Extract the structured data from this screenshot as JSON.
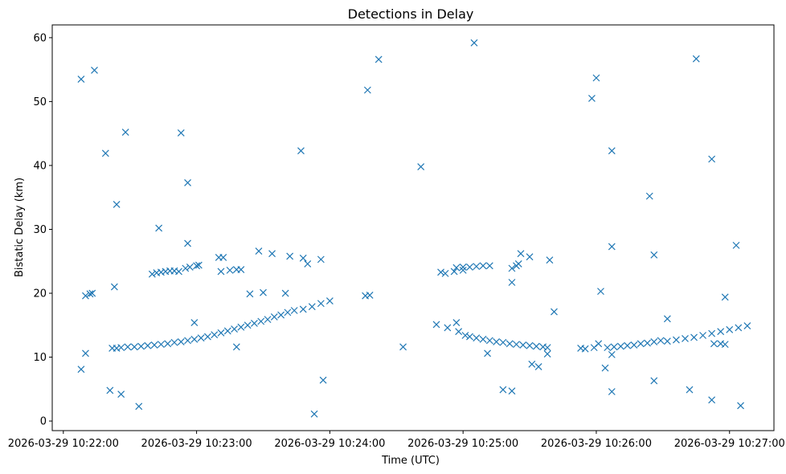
{
  "chart_data": {
    "type": "scatter",
    "title": "Detections in Delay",
    "xlabel": "Time (UTC)",
    "ylabel": "Bistatic Delay (km)",
    "marker": "x",
    "color": "#1f77b4",
    "grid": false,
    "xlim": [
      "2026-03-29 10:21:55",
      "2026-03-29 10:27:20"
    ],
    "ylim": [
      -1.5,
      62
    ],
    "x_ticks": [
      "2026-03-29 10:22:00",
      "2026-03-29 10:23:00",
      "2026-03-29 10:24:00",
      "2026-03-29 10:25:00",
      "2026-03-29 10:26:00",
      "2026-03-29 10:27:00"
    ],
    "y_ticks": [
      0,
      10,
      20,
      30,
      40,
      50,
      60
    ],
    "x_tick_labels": [
      "2026-03-29 10:22:00",
      "2026-03-29 10:23:00",
      "2026-03-29 10:24:00",
      "2026-03-29 10:25:00",
      "2026-03-29 10:26:00",
      "2026-03-29 10:27:00"
    ],
    "y_tick_labels": [
      "0",
      "10",
      "20",
      "30",
      "40",
      "50",
      "60"
    ],
    "points": [
      [
        "2026-03-29 10:22:08",
        53.5
      ],
      [
        "2026-03-29 10:22:08",
        8.1
      ],
      [
        "2026-03-29 10:22:10",
        10.6
      ],
      [
        "2026-03-29 10:22:10",
        19.6
      ],
      [
        "2026-03-29 10:22:12",
        19.9
      ],
      [
        "2026-03-29 10:22:13",
        20.0
      ],
      [
        "2026-03-29 10:22:14",
        54.9
      ],
      [
        "2026-03-29 10:22:19",
        41.9
      ],
      [
        "2026-03-29 10:22:21",
        4.8
      ],
      [
        "2026-03-29 10:22:23",
        21.0
      ],
      [
        "2026-03-29 10:22:24",
        33.9
      ],
      [
        "2026-03-29 10:22:26",
        4.2
      ],
      [
        "2026-03-29 10:22:28",
        45.2
      ],
      [
        "2026-03-29 10:22:34",
        2.3
      ],
      [
        "2026-03-29 10:22:43",
        30.2
      ],
      [
        "2026-03-29 10:22:53",
        45.1
      ],
      [
        "2026-03-29 10:22:56",
        37.3
      ],
      [
        "2026-03-29 10:22:56",
        27.8
      ],
      [
        "2026-03-29 10:22:59",
        15.4
      ],
      [
        "2026-03-29 10:23:18",
        11.6
      ],
      [
        "2026-03-29 10:23:24",
        19.9
      ],
      [
        "2026-03-29 10:23:28",
        26.6
      ],
      [
        "2026-03-29 10:23:30",
        20.1
      ],
      [
        "2026-03-29 10:23:34",
        26.2
      ],
      [
        "2026-03-29 10:23:40",
        20.0
      ],
      [
        "2026-03-29 10:23:42",
        25.8
      ],
      [
        "2026-03-29 10:23:47",
        42.3
      ],
      [
        "2026-03-29 10:23:53",
        1.1
      ],
      [
        "2026-03-29 10:23:57",
        6.4
      ],
      [
        "2026-03-29 10:24:17",
        51.8
      ],
      [
        "2026-03-29 10:24:22",
        56.6
      ],
      [
        "2026-03-29 10:24:33",
        11.6
      ],
      [
        "2026-03-29 10:24:41",
        39.8
      ],
      [
        "2026-03-29 10:24:48",
        15.1
      ],
      [
        "2026-03-29 10:24:53",
        14.6
      ],
      [
        "2026-03-29 10:24:57",
        15.4
      ],
      [
        "2026-03-29 10:25:05",
        59.2
      ],
      [
        "2026-03-29 10:25:11",
        10.6
      ],
      [
        "2026-03-29 10:25:18",
        4.9
      ],
      [
        "2026-03-29 10:25:22",
        21.7
      ],
      [
        "2026-03-29 10:25:22",
        4.7
      ],
      [
        "2026-03-29 10:25:26",
        26.2
      ],
      [
        "2026-03-29 10:25:30",
        25.7
      ],
      [
        "2026-03-29 10:25:31",
        8.9
      ],
      [
        "2026-03-29 10:25:34",
        8.5
      ],
      [
        "2026-03-29 10:25:38",
        10.5
      ],
      [
        "2026-03-29 10:25:39",
        25.2
      ],
      [
        "2026-03-29 10:25:41",
        17.1
      ],
      [
        "2026-03-29 10:25:53",
        11.4
      ],
      [
        "2026-03-29 10:25:55",
        11.3
      ],
      [
        "2026-03-29 10:25:58",
        50.5
      ],
      [
        "2026-03-29 10:25:59",
        11.5
      ],
      [
        "2026-03-29 10:26:01",
        12.1
      ],
      [
        "2026-03-29 10:26:00",
        53.7
      ],
      [
        "2026-03-29 10:26:02",
        20.3
      ],
      [
        "2026-03-29 10:26:04",
        8.3
      ],
      [
        "2026-03-29 10:26:07",
        4.6
      ],
      [
        "2026-03-29 10:26:07",
        27.3
      ],
      [
        "2026-03-29 10:26:07",
        42.3
      ],
      [
        "2026-03-29 10:26:07",
        10.4
      ],
      [
        "2026-03-29 10:26:24",
        35.2
      ],
      [
        "2026-03-29 10:26:26",
        26.0
      ],
      [
        "2026-03-29 10:26:26",
        6.3
      ],
      [
        "2026-03-29 10:26:32",
        16.0
      ],
      [
        "2026-03-29 10:26:42",
        4.9
      ],
      [
        "2026-03-29 10:26:45",
        56.7
      ],
      [
        "2026-03-29 10:26:52",
        41.0
      ],
      [
        "2026-03-29 10:26:52",
        3.3
      ],
      [
        "2026-03-29 10:26:53",
        12.1
      ],
      [
        "2026-03-29 10:26:56",
        12.1
      ],
      [
        "2026-03-29 10:26:58",
        12.0
      ],
      [
        "2026-03-29 10:26:58",
        19.4
      ],
      [
        "2026-03-29 10:27:03",
        27.5
      ],
      [
        "2026-03-29 10:27:05",
        2.4
      ],
      [
        "2026-03-29 10:22:40",
        23.0
      ],
      [
        "2026-03-29 10:22:42",
        23.2
      ],
      [
        "2026-03-29 10:22:44",
        23.3
      ],
      [
        "2026-03-29 10:22:46",
        23.4
      ],
      [
        "2026-03-29 10:22:48",
        23.5
      ],
      [
        "2026-03-29 10:22:50",
        23.5
      ],
      [
        "2026-03-29 10:22:52",
        23.4
      ],
      [
        "2026-03-29 10:22:55",
        23.9
      ],
      [
        "2026-03-29 10:22:57",
        24.1
      ],
      [
        "2026-03-29 10:23:00",
        24.3
      ],
      [
        "2026-03-29 10:23:01",
        24.4
      ],
      [
        "2026-03-29 10:23:10",
        25.6
      ],
      [
        "2026-03-29 10:23:12",
        25.6
      ],
      [
        "2026-03-29 10:23:11",
        23.4
      ],
      [
        "2026-03-29 10:23:15",
        23.6
      ],
      [
        "2026-03-29 10:23:18",
        23.7
      ],
      [
        "2026-03-29 10:23:20",
        23.7
      ],
      [
        "2026-03-29 10:23:48",
        25.5
      ],
      [
        "2026-03-29 10:23:50",
        24.6
      ],
      [
        "2026-03-29 10:23:56",
        25.3
      ],
      [
        "2026-03-29 10:24:50",
        23.3
      ],
      [
        "2026-03-29 10:24:52",
        23.1
      ],
      [
        "2026-03-29 10:24:56",
        23.4
      ],
      [
        "2026-03-29 10:25:00",
        23.6
      ],
      [
        "2026-03-29 10:25:22",
        23.9
      ],
      [
        "2026-03-29 10:25:24",
        24.3
      ],
      [
        "2026-03-29 10:25:25",
        24.6
      ],
      [
        "2026-03-29 10:22:22",
        11.4
      ],
      [
        "2026-03-29 10:22:24",
        11.4
      ],
      [
        "2026-03-29 10:22:26",
        11.5
      ],
      [
        "2026-03-29 10:22:29",
        11.6
      ],
      [
        "2026-03-29 10:22:32",
        11.6
      ],
      [
        "2026-03-29 10:22:35",
        11.7
      ],
      [
        "2026-03-29 10:22:38",
        11.8
      ],
      [
        "2026-03-29 10:22:41",
        11.9
      ],
      [
        "2026-03-29 10:22:44",
        12.0
      ],
      [
        "2026-03-29 10:22:47",
        12.1
      ],
      [
        "2026-03-29 10:22:50",
        12.3
      ],
      [
        "2026-03-29 10:22:53",
        12.4
      ],
      [
        "2026-03-29 10:22:56",
        12.6
      ],
      [
        "2026-03-29 10:22:59",
        12.8
      ],
      [
        "2026-03-29 10:23:02",
        13.0
      ],
      [
        "2026-03-29 10:23:05",
        13.2
      ],
      [
        "2026-03-29 10:23:08",
        13.5
      ],
      [
        "2026-03-29 10:23:11",
        13.8
      ],
      [
        "2026-03-29 10:23:14",
        14.1
      ],
      [
        "2026-03-29 10:23:17",
        14.4
      ],
      [
        "2026-03-29 10:23:20",
        14.7
      ],
      [
        "2026-03-29 10:23:23",
        15.0
      ],
      [
        "2026-03-29 10:23:26",
        15.3
      ],
      [
        "2026-03-29 10:23:29",
        15.6
      ],
      [
        "2026-03-29 10:23:32",
        15.9
      ],
      [
        "2026-03-29 10:23:35",
        16.3
      ],
      [
        "2026-03-29 10:23:38",
        16.6
      ],
      [
        "2026-03-29 10:23:41",
        17.0
      ],
      [
        "2026-03-29 10:23:44",
        17.3
      ],
      [
        "2026-03-29 10:23:48",
        17.5
      ],
      [
        "2026-03-29 10:23:52",
        17.9
      ],
      [
        "2026-03-29 10:23:56",
        18.4
      ],
      [
        "2026-03-29 10:24:00",
        18.8
      ],
      [
        "2026-03-29 10:24:16",
        19.6
      ],
      [
        "2026-03-29 10:24:18",
        19.7
      ],
      [
        "2026-03-29 10:24:57",
        24.0
      ],
      [
        "2026-03-29 10:25:00",
        24.1
      ],
      [
        "2026-03-29 10:25:03",
        24.1
      ],
      [
        "2026-03-29 10:25:06",
        24.2
      ],
      [
        "2026-03-29 10:25:09",
        24.3
      ],
      [
        "2026-03-29 10:25:12",
        24.3
      ],
      [
        "2026-03-29 10:24:58",
        14.0
      ],
      [
        "2026-03-29 10:25:01",
        13.4
      ],
      [
        "2026-03-29 10:25:03",
        13.2
      ],
      [
        "2026-03-29 10:25:06",
        13.0
      ],
      [
        "2026-03-29 10:25:09",
        12.8
      ],
      [
        "2026-03-29 10:25:12",
        12.6
      ],
      [
        "2026-03-29 10:25:15",
        12.4
      ],
      [
        "2026-03-29 10:25:18",
        12.3
      ],
      [
        "2026-03-29 10:25:21",
        12.1
      ],
      [
        "2026-03-29 10:25:24",
        12.0
      ],
      [
        "2026-03-29 10:25:27",
        11.9
      ],
      [
        "2026-03-29 10:25:30",
        11.8
      ],
      [
        "2026-03-29 10:25:33",
        11.7
      ],
      [
        "2026-03-29 10:25:36",
        11.6
      ],
      [
        "2026-03-29 10:25:38",
        11.5
      ],
      [
        "2026-03-29 10:26:05",
        11.5
      ],
      [
        "2026-03-29 10:26:08",
        11.6
      ],
      [
        "2026-03-29 10:26:11",
        11.7
      ],
      [
        "2026-03-29 10:26:14",
        11.8
      ],
      [
        "2026-03-29 10:26:17",
        11.9
      ],
      [
        "2026-03-29 10:26:20",
        12.1
      ],
      [
        "2026-03-29 10:26:23",
        12.2
      ],
      [
        "2026-03-29 10:26:26",
        12.4
      ],
      [
        "2026-03-29 10:26:29",
        12.6
      ],
      [
        "2026-03-29 10:26:32",
        12.5
      ],
      [
        "2026-03-29 10:26:36",
        12.7
      ],
      [
        "2026-03-29 10:26:40",
        12.9
      ],
      [
        "2026-03-29 10:26:44",
        13.1
      ],
      [
        "2026-03-29 10:26:48",
        13.4
      ],
      [
        "2026-03-29 10:26:52",
        13.7
      ],
      [
        "2026-03-29 10:26:56",
        14.0
      ],
      [
        "2026-03-29 10:27:00",
        14.3
      ],
      [
        "2026-03-29 10:27:04",
        14.6
      ],
      [
        "2026-03-29 10:27:08",
        14.9
      ]
    ]
  }
}
